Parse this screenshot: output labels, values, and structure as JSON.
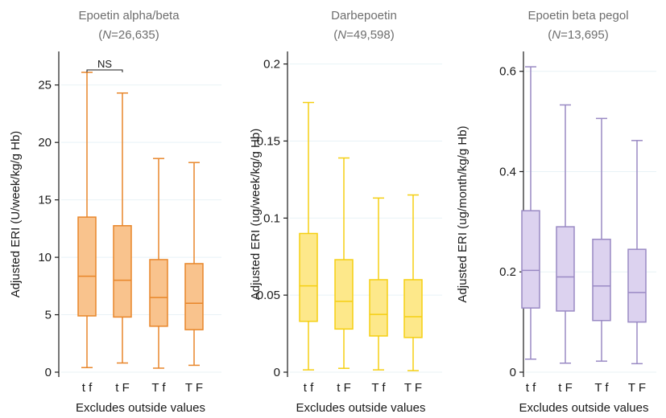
{
  "chart_data": [
    {
      "type": "box",
      "title": "Epoetin alpha/beta",
      "subtitle_prefix": "(",
      "subtitle_n": "N",
      "subtitle_suffix": "=26,635)",
      "ylabel": "Adjusted ERI (U/week/kg/g Hb)",
      "xlabel": "Excludes outside values",
      "ylim": [
        0,
        27.5
      ],
      "yticks": [
        0,
        5,
        10,
        15,
        20,
        25
      ],
      "yticklabels": [
        "0",
        "5",
        "10",
        "15",
        "20",
        "25"
      ],
      "grid": true,
      "color": "#e8862a",
      "fill": "#f9c38d",
      "categories": [
        "t f",
        "t F",
        "T f",
        "T F"
      ],
      "boxes": [
        {
          "min": 0.4,
          "q1": 4.9,
          "median": 8.35,
          "q3": 13.5,
          "max": 26.1
        },
        {
          "min": 0.8,
          "q1": 4.8,
          "median": 8.0,
          "q3": 12.75,
          "max": 24.3
        },
        {
          "min": 0.35,
          "q1": 4.0,
          "median": 6.5,
          "q3": 9.8,
          "max": 18.6
        },
        {
          "min": 0.6,
          "q1": 3.7,
          "median": 6.0,
          "q3": 9.45,
          "max": 18.25
        }
      ],
      "annotation": {
        "label": "NS",
        "from": 0,
        "to": 1
      }
    },
    {
      "type": "box",
      "title": "Darbepoetin",
      "subtitle_prefix": "(",
      "subtitle_n": "N",
      "subtitle_suffix": "=49,598)",
      "ylabel": "Adjusted ERI (ug/week/kg/g Hb)",
      "xlabel": "Excludes outside values",
      "ylim": [
        0,
        0.205
      ],
      "yticks": [
        0,
        0.05,
        0.1,
        0.15,
        0.2
      ],
      "yticklabels": [
        "0",
        "0.05",
        "0.1",
        "0.15",
        "0.2"
      ],
      "grid": true,
      "color": "#f5cf12",
      "fill": "#fde88a",
      "categories": [
        "t f",
        "t F",
        "T f",
        "T F"
      ],
      "boxes": [
        {
          "min": 0.0015,
          "q1": 0.033,
          "median": 0.056,
          "q3": 0.09,
          "max": 0.175
        },
        {
          "min": 0.0025,
          "q1": 0.028,
          "median": 0.046,
          "q3": 0.073,
          "max": 0.139
        },
        {
          "min": 0.0015,
          "q1": 0.0235,
          "median": 0.0375,
          "q3": 0.06,
          "max": 0.113
        },
        {
          "min": 0.001,
          "q1": 0.0225,
          "median": 0.036,
          "q3": 0.06,
          "max": 0.115
        }
      ]
    },
    {
      "type": "box",
      "title": "Epoetin beta pegol",
      "subtitle_prefix": "(",
      "subtitle_n": "N",
      "subtitle_suffix": "=13,695)",
      "ylabel": "Adjusted ERI (ug/month/kg/g Hb)",
      "xlabel": "Excludes outside values",
      "ylim": [
        0,
        0.63
      ],
      "yticks": [
        0,
        0.2,
        0.4,
        0.6
      ],
      "yticklabels": [
        "0",
        "0.2",
        "0.4",
        "0.6"
      ],
      "grid": true,
      "color": "#9a8ac4",
      "fill": "#dcd2ef",
      "categories": [
        "t f",
        "t F",
        "T f",
        "T F"
      ],
      "boxes": [
        {
          "min": 0.026,
          "q1": 0.128,
          "median": 0.203,
          "q3": 0.322,
          "max": 0.609
        },
        {
          "min": 0.018,
          "q1": 0.122,
          "median": 0.19,
          "q3": 0.29,
          "max": 0.533
        },
        {
          "min": 0.022,
          "q1": 0.103,
          "median": 0.172,
          "q3": 0.265,
          "max": 0.506
        },
        {
          "min": 0.017,
          "q1": 0.1,
          "median": 0.159,
          "q3": 0.245,
          "max": 0.462
        }
      ]
    }
  ]
}
